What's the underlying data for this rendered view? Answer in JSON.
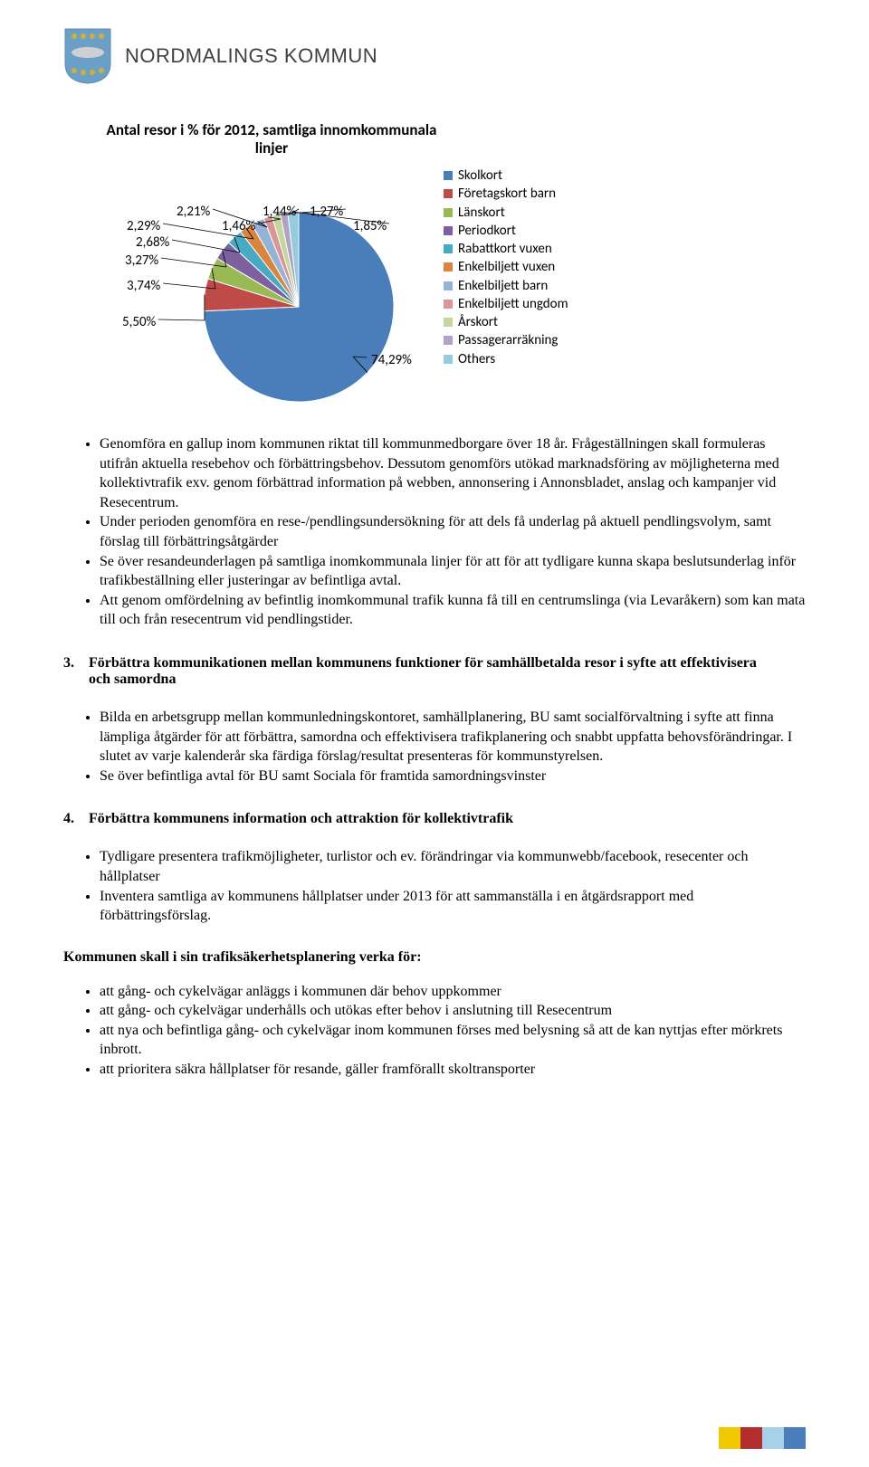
{
  "header": {
    "org_name": "NORDMALINGS KOMMUN",
    "crest_colors": {
      "primary": "#6aa0c8",
      "accent": "#d4af37",
      "fish": "#d0d0d0"
    }
  },
  "chart": {
    "type": "pie",
    "title": "Antal resor i % för 2012, samtliga innomkommunala linjer",
    "background_color": "#ffffff",
    "title_fontsize": 17,
    "label_fontsize": 15,
    "series": [
      {
        "label": "Skolkort",
        "value": 74.29,
        "color": "#4a7ebb",
        "display": "74,29%"
      },
      {
        "label": "Företagskort barn",
        "value": 5.5,
        "color": "#be4b48",
        "display": "5,50%"
      },
      {
        "label": "Länskort",
        "value": 3.74,
        "color": "#98b954",
        "display": "3,74%"
      },
      {
        "label": "Periodkort",
        "value": 3.27,
        "color": "#7d60a0",
        "display": "3,27%"
      },
      {
        "label": "Rabattkort vuxen",
        "value": 2.68,
        "color": "#46aac5",
        "display": "2,68%"
      },
      {
        "label": "Enkelbiljett vuxen",
        "value": 2.29,
        "color": "#db843d",
        "display": "2,29%"
      },
      {
        "label": "Enkelbiljett barn",
        "value": 2.21,
        "color": "#95b3d7",
        "display": "2,21%"
      },
      {
        "label": "Enkelbiljett ungdom",
        "value": 1.46,
        "color": "#d99694",
        "display": "1,46%"
      },
      {
        "label": "Årskort",
        "value": 1.44,
        "color": "#c3d69b",
        "display": "1,44%"
      },
      {
        "label": "Passagerarräkning",
        "value": 1.27,
        "color": "#b2a1c7",
        "display": "1,27%"
      },
      {
        "label": "Others",
        "value": 1.85,
        "color": "#93cddd",
        "display": "1,85%"
      }
    ],
    "legend_position": "right"
  },
  "bullets1": [
    "Genomföra en gallup inom kommunen riktat till kommunmedborgare över 18 år. Frågeställningen skall formuleras utifrån aktuella resebehov och förbättringsbehov. Dessutom genomförs utökad marknadsföring av möjligheterna med kollektivtrafik exv. genom förbättrad information på webben, annonsering i Annonsbladet, anslag och kampanjer vid Resecentrum.",
    "Under perioden genomföra en rese-/pendlingsundersökning för att dels få underlag på aktuell pendlingsvolym, samt förslag till förbättringsåtgärder",
    "Se över resandeunderlagen på samtliga inomkommunala linjer för att för att tydligare kunna skapa beslutsunderlag inför trafikbeställning eller justeringar av befintliga avtal.",
    "Att genom omfördelning av befintlig inomkommunal trafik kunna få till en centrumslinga (via Levaråkern) som kan mata till och från resecentrum vid pendlingstider."
  ],
  "section3": {
    "number": "3.",
    "title": "Förbättra kommunikationen mellan kommunens funktioner för samhällbetalda resor i syfte att effektivisera och samordna",
    "bullets": [
      "Bilda en arbetsgrupp mellan kommunledningskontoret, samhällplanering, BU samt socialförvaltning i syfte att finna lämpliga åtgärder för att förbättra, samordna och effektivisera trafikplanering och snabbt uppfatta behovsförändringar. I slutet av varje kalenderår ska färdiga förslag/resultat presenteras för kommunstyrelsen.",
      "Se över befintliga avtal för BU samt Sociala för framtida samordningsvinster"
    ]
  },
  "section4": {
    "number": "4.",
    "title": "Förbättra kommunens information och attraktion för kollektivtrafik",
    "bullets": [
      "Tydligare presentera trafikmöjligheter, turlistor och ev. förändringar via kommunwebb/facebook, resecenter och hållplatser",
      "Inventera samtliga av kommunens hållplatser under 2013 för att sammanställa i en åtgärdsrapport med förbättringsförslag."
    ]
  },
  "safety_section": {
    "heading": "Kommunen skall i sin trafiksäkerhetsplanering verka för:",
    "bullets": [
      "att gång- och cykelvägar anläggs i kommunen där behov uppkommer",
      "att gång- och cykelvägar underhålls och utökas efter behov i anslutning till Resecentrum",
      "att nya och befintliga gång- och cykelvägar inom kommunen förses med belysning så att de kan nyttjas efter mörkrets inbrott.",
      "att prioritera säkra hållplatser för resande, gäller framförallt skoltransporter"
    ]
  },
  "footer_swatches": [
    "#f0c800",
    "#b22e2e",
    "#a8d0e8",
    "#4a7ebb"
  ]
}
